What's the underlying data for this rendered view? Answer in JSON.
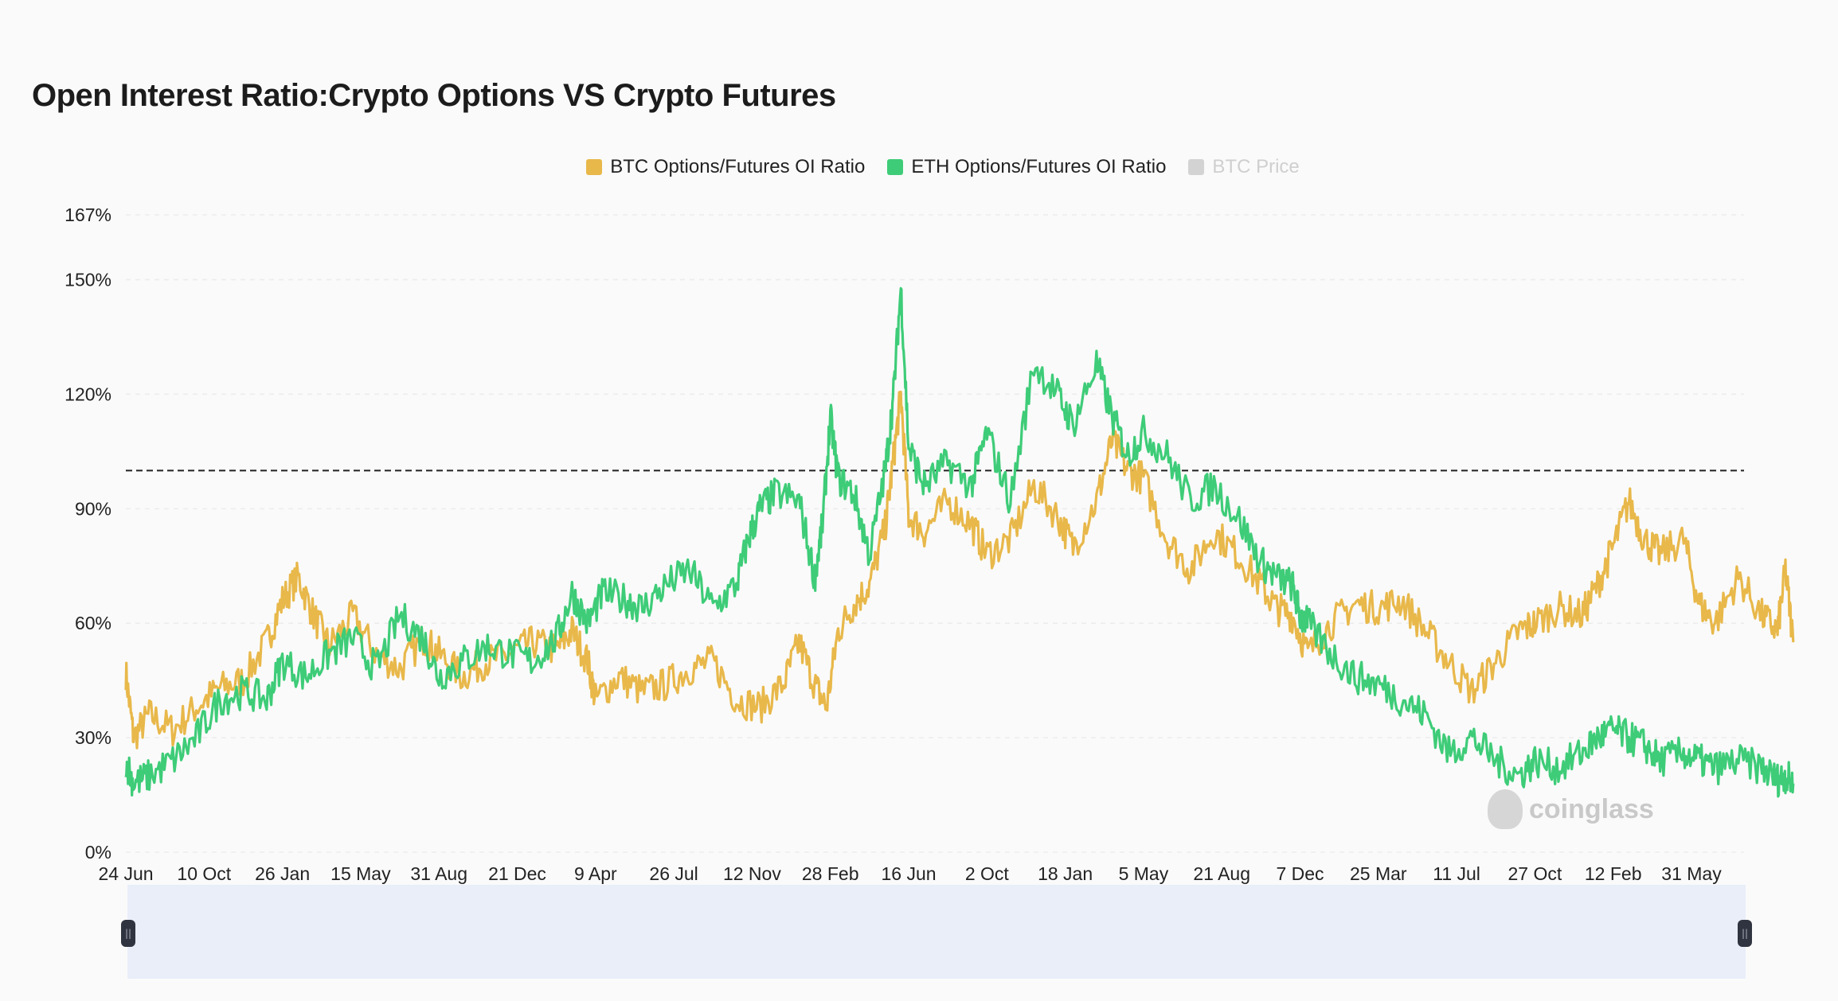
{
  "title": "Open Interest Ratio:Crypto Options VS Crypto Futures",
  "legend": [
    {
      "label": "BTC Options/Futures OI Ratio",
      "color": "#e8b84a",
      "active": true
    },
    {
      "label": "ETH Options/Futures OI Ratio",
      "color": "#3ecc78",
      "active": true
    },
    {
      "label": "BTC Price",
      "color": "#d3d3d3",
      "active": false
    }
  ],
  "watermark": "coinglass",
  "chart_data": {
    "type": "line",
    "title": "Open Interest Ratio:Crypto Options VS Crypto Futures",
    "xlabel": "",
    "ylabel": "",
    "ylim": [
      0,
      167
    ],
    "y_ticks": [
      "0%",
      "30%",
      "60%",
      "90%",
      "120%",
      "150%",
      "167%"
    ],
    "y_tick_values": [
      0,
      30,
      60,
      90,
      120,
      150,
      167
    ],
    "x_ticks": [
      "24 Jun",
      "10 Oct",
      "26 Jan",
      "15 May",
      "31 Aug",
      "21 Dec",
      "9 Apr",
      "26 Jul",
      "12 Nov",
      "28 Feb",
      "16 Jun",
      "2 Oct",
      "18 Jan",
      "5 May",
      "21 Aug",
      "7 Dec",
      "25 Mar",
      "11 Jul",
      "27 Oct",
      "12 Feb",
      "31 May"
    ],
    "reference_line": 100,
    "grid": true,
    "legend_position": "top-center",
    "series": [
      {
        "name": "BTC Options/Futures OI Ratio",
        "color": "#e8b84a",
        "points": [
          [
            0,
            47
          ],
          [
            0.1,
            30
          ],
          [
            0.3,
            36
          ],
          [
            0.6,
            32
          ],
          [
            0.9,
            38
          ],
          [
            1.2,
            43
          ],
          [
            1.5,
            45
          ],
          [
            1.8,
            55
          ],
          [
            2.0,
            66
          ],
          [
            2.2,
            72
          ],
          [
            2.4,
            62
          ],
          [
            2.6,
            54
          ],
          [
            2.9,
            62
          ],
          [
            3.2,
            52
          ],
          [
            3.5,
            48
          ],
          [
            3.8,
            56
          ],
          [
            4.0,
            52
          ],
          [
            4.3,
            46
          ],
          [
            4.6,
            50
          ],
          [
            4.9,
            52
          ],
          [
            5.2,
            55
          ],
          [
            5.5,
            53
          ],
          [
            5.7,
            58
          ],
          [
            5.9,
            50
          ],
          [
            6.0,
            40
          ],
          [
            6.3,
            46
          ],
          [
            6.6,
            42
          ],
          [
            6.9,
            44
          ],
          [
            7.2,
            48
          ],
          [
            7.5,
            50
          ],
          [
            7.8,
            40
          ],
          [
            8.1,
            38
          ],
          [
            8.4,
            44
          ],
          [
            8.6,
            55
          ],
          [
            8.8,
            44
          ],
          [
            8.95,
            38
          ],
          [
            9.1,
            58
          ],
          [
            9.3,
            65
          ],
          [
            9.5,
            70
          ],
          [
            9.7,
            85
          ],
          [
            9.8,
            102
          ],
          [
            9.9,
            120
          ],
          [
            10.0,
            88
          ],
          [
            10.2,
            84
          ],
          [
            10.5,
            92
          ],
          [
            10.8,
            86
          ],
          [
            11.0,
            78
          ],
          [
            11.3,
            82
          ],
          [
            11.6,
            96
          ],
          [
            11.9,
            88
          ],
          [
            12.1,
            80
          ],
          [
            12.4,
            92
          ],
          [
            12.6,
            108
          ],
          [
            12.8,
            100
          ],
          [
            13.0,
            98
          ],
          [
            13.3,
            82
          ],
          [
            13.6,
            74
          ],
          [
            13.9,
            84
          ],
          [
            14.2,
            78
          ],
          [
            14.5,
            70
          ],
          [
            14.7,
            64
          ],
          [
            14.9,
            62
          ],
          [
            15.1,
            52
          ],
          [
            15.4,
            60
          ],
          [
            15.7,
            65
          ],
          [
            16.0,
            64
          ],
          [
            16.3,
            66
          ],
          [
            16.6,
            58
          ],
          [
            16.9,
            50
          ],
          [
            17.2,
            42
          ],
          [
            17.5,
            50
          ],
          [
            17.8,
            58
          ],
          [
            18.0,
            60
          ],
          [
            18.3,
            64
          ],
          [
            18.6,
            62
          ],
          [
            18.8,
            70
          ],
          [
            19.0,
            80
          ],
          [
            19.2,
            92
          ],
          [
            19.4,
            82
          ],
          [
            19.6,
            78
          ],
          [
            19.9,
            82
          ],
          [
            20.1,
            65
          ],
          [
            20.3,
            60
          ],
          [
            20.6,
            72
          ],
          [
            20.9,
            62
          ],
          [
            21.1,
            58
          ],
          [
            21.2,
            74
          ],
          [
            21.3,
            55
          ]
        ]
      },
      {
        "name": "ETH Options/Futures OI Ratio",
        "color": "#3ecc78",
        "points": [
          [
            0,
            24
          ],
          [
            0.1,
            18
          ],
          [
            0.3,
            20
          ],
          [
            0.6,
            24
          ],
          [
            0.9,
            30
          ],
          [
            1.2,
            40
          ],
          [
            1.5,
            42
          ],
          [
            1.8,
            40
          ],
          [
            2.0,
            50
          ],
          [
            2.3,
            46
          ],
          [
            2.6,
            52
          ],
          [
            2.9,
            56
          ],
          [
            3.2,
            48
          ],
          [
            3.5,
            62
          ],
          [
            3.8,
            56
          ],
          [
            4.0,
            46
          ],
          [
            4.3,
            50
          ],
          [
            4.6,
            54
          ],
          [
            4.9,
            52
          ],
          [
            5.2,
            50
          ],
          [
            5.5,
            56
          ],
          [
            5.7,
            68
          ],
          [
            5.9,
            60
          ],
          [
            6.1,
            68
          ],
          [
            6.4,
            66
          ],
          [
            6.6,
            64
          ],
          [
            6.9,
            70
          ],
          [
            7.2,
            74
          ],
          [
            7.5,
            64
          ],
          [
            7.8,
            70
          ],
          [
            7.95,
            82
          ],
          [
            8.1,
            90
          ],
          [
            8.3,
            94
          ],
          [
            8.6,
            92
          ],
          [
            8.8,
            72
          ],
          [
            8.9,
            86
          ],
          [
            9.0,
            114
          ],
          [
            9.1,
            98
          ],
          [
            9.3,
            94
          ],
          [
            9.5,
            78
          ],
          [
            9.7,
            100
          ],
          [
            9.8,
            118
          ],
          [
            9.9,
            148
          ],
          [
            10.0,
            106
          ],
          [
            10.2,
            96
          ],
          [
            10.5,
            102
          ],
          [
            10.8,
            96
          ],
          [
            11.0,
            110
          ],
          [
            11.3,
            92
          ],
          [
            11.6,
            128
          ],
          [
            11.9,
            120
          ],
          [
            12.1,
            112
          ],
          [
            12.4,
            128
          ],
          [
            12.6,
            114
          ],
          [
            12.8,
            104
          ],
          [
            13.0,
            110
          ],
          [
            13.3,
            104
          ],
          [
            13.6,
            92
          ],
          [
            13.9,
            96
          ],
          [
            14.2,
            88
          ],
          [
            14.5,
            76
          ],
          [
            14.7,
            72
          ],
          [
            14.9,
            70
          ],
          [
            15.0,
            62
          ],
          [
            15.1,
            60
          ],
          [
            15.4,
            52
          ],
          [
            15.7,
            46
          ],
          [
            16.0,
            44
          ],
          [
            16.3,
            40
          ],
          [
            16.6,
            36
          ],
          [
            16.9,
            26
          ],
          [
            17.2,
            30
          ],
          [
            17.5,
            24
          ],
          [
            17.8,
            20
          ],
          [
            18.0,
            24
          ],
          [
            18.3,
            22
          ],
          [
            18.6,
            26
          ],
          [
            18.8,
            30
          ],
          [
            19.0,
            32
          ],
          [
            19.2,
            30
          ],
          [
            19.4,
            28
          ],
          [
            19.6,
            24
          ],
          [
            19.9,
            26
          ],
          [
            20.1,
            24
          ],
          [
            20.3,
            22
          ],
          [
            20.6,
            24
          ],
          [
            20.9,
            22
          ],
          [
            21.1,
            19
          ],
          [
            21.2,
            20
          ],
          [
            21.3,
            18
          ]
        ]
      }
    ]
  }
}
